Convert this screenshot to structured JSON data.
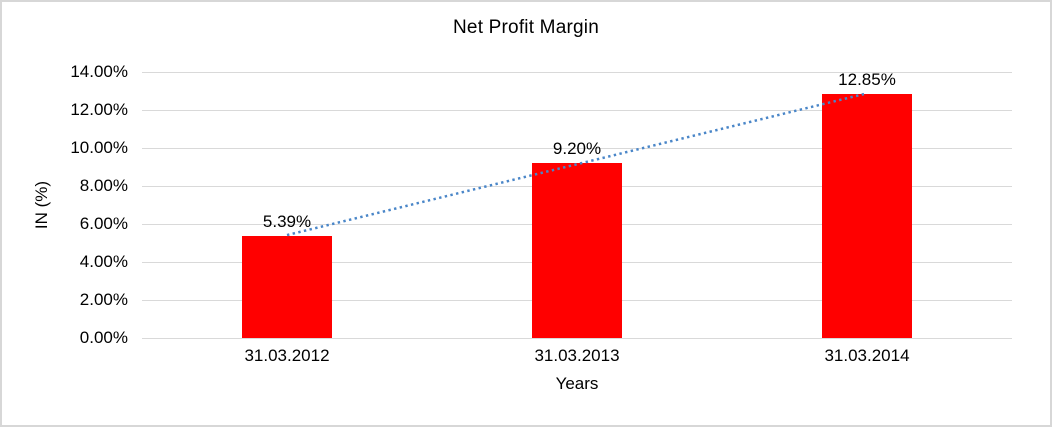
{
  "chart_data": {
    "type": "bar",
    "title": "Net Profit Margin",
    "xlabel": "Years",
    "ylabel": "IN (%)",
    "categories": [
      "31.03.2012",
      "31.03.2013",
      "31.03.2014"
    ],
    "values": [
      5.39,
      9.2,
      12.85
    ],
    "data_labels": [
      "5.39%",
      "9.20%",
      "12.85%"
    ],
    "ylim": [
      0,
      14
    ],
    "ytick_step": 2,
    "ytick_labels": [
      "0.00%",
      "2.00%",
      "4.00%",
      "6.00%",
      "8.00%",
      "10.00%",
      "12.00%",
      "14.00%"
    ],
    "grid": "horizontal",
    "legend": "none",
    "trendline": {
      "type": "linear",
      "style": "dotted",
      "spans": "first-to-last-category-center"
    },
    "colors": {
      "bar": "#ff0000",
      "trendline": "#4a86c8",
      "gridline": "#d9d9d9",
      "text": "#000000",
      "frame_border": "#d7d7d7",
      "background": "#ffffff"
    }
  }
}
